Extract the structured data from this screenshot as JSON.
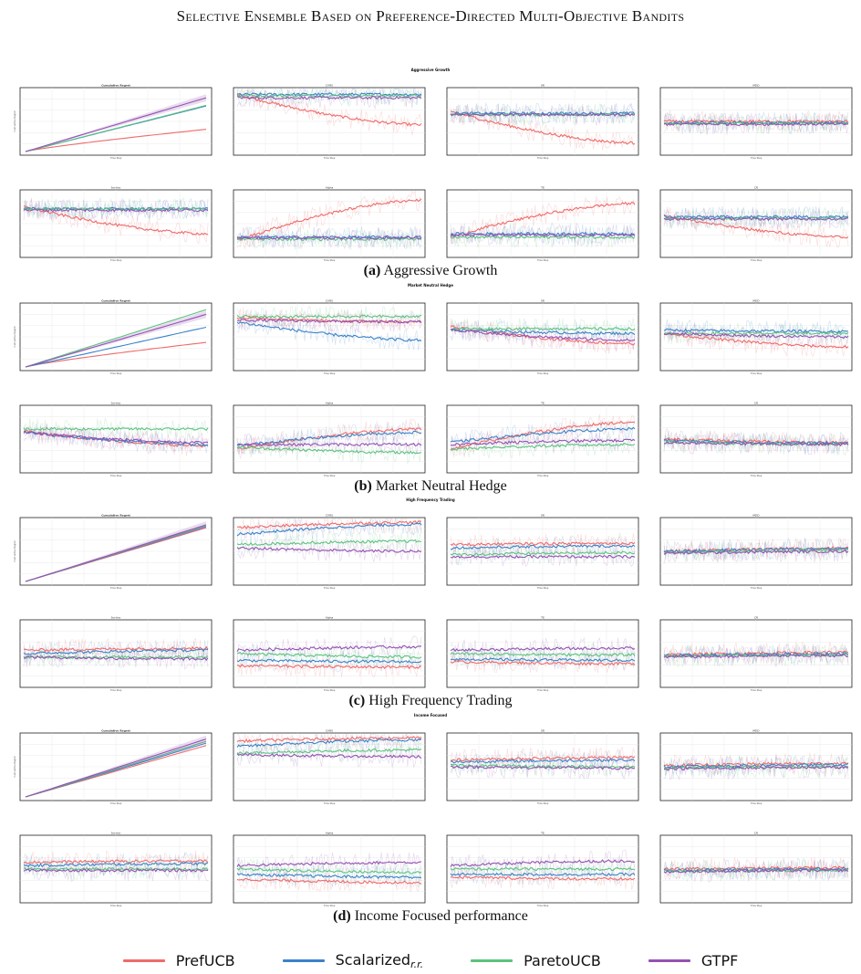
{
  "running_head": "Selective Ensemble Based on Preference-Directed Multi-Objective Bandits",
  "colors": {
    "PrefUCB": "#ef6a6a",
    "Scalarized": "#3b82c8",
    "ParetoUCB": "#5cc27f",
    "GTPF": "#9452b3"
  },
  "legend": [
    {
      "label": "PrefUCB",
      "sub": "",
      "color": "#ef6a6a"
    },
    {
      "label": "Scalarized",
      "sub": "r.r.",
      "color": "#3b82c8"
    },
    {
      "label": "ParetoUCB",
      "sub": "",
      "color": "#5cc27f"
    },
    {
      "label": "GTPF",
      "sub": "",
      "color": "#9452b3"
    }
  ],
  "figures": [
    {
      "title": "Aggressive Growth",
      "caption_tag": "(a)",
      "caption_text": "Aggressive Growth",
      "panels": [
        "Cumulative Regret",
        "CVRS",
        "SR",
        "MDD",
        "Sortino",
        "Alpha",
        "TE",
        "CR"
      ],
      "cumulative_final": {
        "PrefUCB": 0.38,
        "Scalarized": 0.78,
        "ParetoUCB": 0.79,
        "GTPF": 0.92
      },
      "trends": {
        "CVRS": {
          "PrefUCB": [
            0.9,
            0.45
          ],
          "Scalarized": [
            0.9,
            0.9
          ],
          "ParetoUCB": [
            0.88,
            0.88
          ],
          "GTPF": [
            0.85,
            0.85
          ]
        },
        "SR": {
          "PrefUCB": [
            0.65,
            0.18
          ],
          "Scalarized": [
            0.62,
            0.62
          ],
          "ParetoUCB": [
            0.6,
            0.6
          ],
          "GTPF": [
            0.6,
            0.6
          ]
        },
        "MDD": {
          "PrefUCB": [
            0.5,
            0.5
          ],
          "Scalarized": [
            0.48,
            0.48
          ],
          "ParetoUCB": [
            0.47,
            0.47
          ],
          "GTPF": [
            0.46,
            0.46
          ]
        },
        "Sortino": {
          "PrefUCB": [
            0.75,
            0.35
          ],
          "Scalarized": [
            0.72,
            0.72
          ],
          "ParetoUCB": [
            0.72,
            0.72
          ],
          "GTPF": [
            0.7,
            0.7
          ]
        },
        "Alpha": {
          "PrefUCB": [
            0.25,
            0.85
          ],
          "Scalarized": [
            0.3,
            0.3
          ],
          "ParetoUCB": [
            0.27,
            0.27
          ],
          "GTPF": [
            0.29,
            0.29
          ]
        },
        "TE": {
          "PrefUCB": [
            0.3,
            0.8
          ],
          "Scalarized": [
            0.35,
            0.35
          ],
          "ParetoUCB": [
            0.3,
            0.3
          ],
          "GTPF": [
            0.33,
            0.33
          ]
        },
        "CR": {
          "PrefUCB": [
            0.62,
            0.3
          ],
          "Scalarized": [
            0.6,
            0.6
          ],
          "ParetoUCB": [
            0.58,
            0.58
          ],
          "GTPF": [
            0.57,
            0.57
          ]
        }
      }
    },
    {
      "title": "Market Neutral Hedge",
      "caption_tag": "(b)",
      "caption_text": "Market Neutral Hedge",
      "panels": [
        "Cumulative Regret",
        "CVRS",
        "SR",
        "MDD",
        "Sortino",
        "Alpha",
        "TE",
        "CR"
      ],
      "cumulative_final": {
        "PrefUCB": 0.42,
        "Scalarized": 0.68,
        "ParetoUCB": 0.98,
        "GTPF": 0.9
      },
      "trends": {
        "CVRS": {
          "PrefUCB": [
            0.78,
            0.72
          ],
          "Scalarized": [
            0.72,
            0.45
          ],
          "ParetoUCB": [
            0.8,
            0.8
          ],
          "GTPF": [
            0.75,
            0.72
          ]
        },
        "SR": {
          "PrefUCB": [
            0.65,
            0.4
          ],
          "Scalarized": [
            0.6,
            0.55
          ],
          "ParetoUCB": [
            0.62,
            0.62
          ],
          "GTPF": [
            0.6,
            0.45
          ]
        },
        "MDD": {
          "PrefUCB": [
            0.55,
            0.35
          ],
          "Scalarized": [
            0.6,
            0.58
          ],
          "ParetoUCB": [
            0.55,
            0.55
          ],
          "GTPF": [
            0.55,
            0.5
          ]
        },
        "Sortino": {
          "PrefUCB": [
            0.62,
            0.4
          ],
          "Scalarized": [
            0.6,
            0.42
          ],
          "ParetoUCB": [
            0.65,
            0.65
          ],
          "GTPF": [
            0.6,
            0.45
          ]
        },
        "Alpha": {
          "PrefUCB": [
            0.35,
            0.65
          ],
          "Scalarized": [
            0.4,
            0.6
          ],
          "ParetoUCB": [
            0.38,
            0.3
          ],
          "GTPF": [
            0.42,
            0.42
          ]
        },
        "TE": {
          "PrefUCB": [
            0.35,
            0.75
          ],
          "Scalarized": [
            0.45,
            0.65
          ],
          "ParetoUCB": [
            0.35,
            0.42
          ],
          "GTPF": [
            0.42,
            0.48
          ]
        },
        "CR": {
          "PrefUCB": [
            0.5,
            0.45
          ],
          "Scalarized": [
            0.48,
            0.44
          ],
          "ParetoUCB": [
            0.46,
            0.42
          ],
          "GTPF": [
            0.45,
            0.42
          ]
        }
      }
    },
    {
      "title": "High Frequency Trading",
      "caption_tag": "(c)",
      "caption_text": "High Frequency Trading",
      "panels": [
        "Cumulative Regret",
        "CVRS",
        "SR",
        "MDD",
        "Sortino",
        "Alpha",
        "TE",
        "CR"
      ],
      "cumulative_final": {
        "PrefUCB": 0.92,
        "Scalarized": 0.94,
        "ParetoUCB": 0.95,
        "GTPF": 0.97
      },
      "trends": {
        "CVRS": {
          "PrefUCB": [
            0.85,
            0.93
          ],
          "Scalarized": [
            0.75,
            0.9
          ],
          "ParetoUCB": [
            0.6,
            0.65
          ],
          "GTPF": [
            0.55,
            0.5
          ]
        },
        "SR": {
          "PrefUCB": [
            0.6,
            0.62
          ],
          "Scalarized": [
            0.55,
            0.58
          ],
          "ParetoUCB": [
            0.45,
            0.48
          ],
          "GTPF": [
            0.42,
            0.42
          ]
        },
        "MDD": {
          "PrefUCB": [
            0.5,
            0.55
          ],
          "Scalarized": [
            0.5,
            0.54
          ],
          "ParetoUCB": [
            0.48,
            0.52
          ],
          "GTPF": [
            0.47,
            0.5
          ]
        },
        "Sortino": {
          "PrefUCB": [
            0.55,
            0.58
          ],
          "Scalarized": [
            0.5,
            0.55
          ],
          "ParetoUCB": [
            0.45,
            0.45
          ],
          "GTPF": [
            0.45,
            0.42
          ]
        },
        "Alpha": {
          "PrefUCB": [
            0.32,
            0.3
          ],
          "Scalarized": [
            0.4,
            0.38
          ],
          "ParetoUCB": [
            0.5,
            0.45
          ],
          "GTPF": [
            0.55,
            0.6
          ]
        },
        "TE": {
          "PrefUCB": [
            0.38,
            0.35
          ],
          "Scalarized": [
            0.42,
            0.4
          ],
          "ParetoUCB": [
            0.5,
            0.48
          ],
          "GTPF": [
            0.55,
            0.58
          ]
        },
        "CR": {
          "PrefUCB": [
            0.48,
            0.52
          ],
          "Scalarized": [
            0.47,
            0.5
          ],
          "ParetoUCB": [
            0.46,
            0.48
          ],
          "GTPF": [
            0.45,
            0.47
          ]
        }
      }
    },
    {
      "title": "Income Focused",
      "caption_tag": "(d)",
      "caption_text": "Income Focused performance",
      "panels": [
        "Cumulative Regret",
        "CVRS",
        "SR",
        "MDD",
        "Sortino",
        "Alpha",
        "TE",
        "CR"
      ],
      "cumulative_final": {
        "PrefUCB": 0.88,
        "Scalarized": 0.92,
        "ParetoUCB": 0.95,
        "GTPF": 0.99
      },
      "trends": {
        "CVRS": {
          "PrefUCB": [
            0.88,
            0.93
          ],
          "Scalarized": [
            0.8,
            0.9
          ],
          "ParetoUCB": [
            0.7,
            0.75
          ],
          "GTPF": [
            0.68,
            0.65
          ]
        },
        "SR": {
          "PrefUCB": [
            0.6,
            0.64
          ],
          "Scalarized": [
            0.57,
            0.6
          ],
          "ParetoUCB": [
            0.52,
            0.5
          ],
          "GTPF": [
            0.5,
            0.48
          ]
        },
        "MDD": {
          "PrefUCB": [
            0.52,
            0.55
          ],
          "Scalarized": [
            0.5,
            0.53
          ],
          "ParetoUCB": [
            0.48,
            0.5
          ],
          "GTPF": [
            0.47,
            0.49
          ]
        },
        "Sortino": {
          "PrefUCB": [
            0.6,
            0.62
          ],
          "Scalarized": [
            0.55,
            0.58
          ],
          "ParetoUCB": [
            0.5,
            0.5
          ],
          "GTPF": [
            0.48,
            0.48
          ]
        },
        "Alpha": {
          "PrefUCB": [
            0.35,
            0.3
          ],
          "Scalarized": [
            0.42,
            0.38
          ],
          "ParetoUCB": [
            0.5,
            0.45
          ],
          "GTPF": [
            0.55,
            0.6
          ]
        },
        "TE": {
          "PrefUCB": [
            0.38,
            0.35
          ],
          "Scalarized": [
            0.42,
            0.42
          ],
          "ParetoUCB": [
            0.5,
            0.5
          ],
          "GTPF": [
            0.55,
            0.62
          ]
        },
        "CR": {
          "PrefUCB": [
            0.5,
            0.52
          ],
          "Scalarized": [
            0.48,
            0.5
          ],
          "ParetoUCB": [
            0.47,
            0.48
          ],
          "GTPF": [
            0.46,
            0.48
          ]
        }
      }
    }
  ]
}
